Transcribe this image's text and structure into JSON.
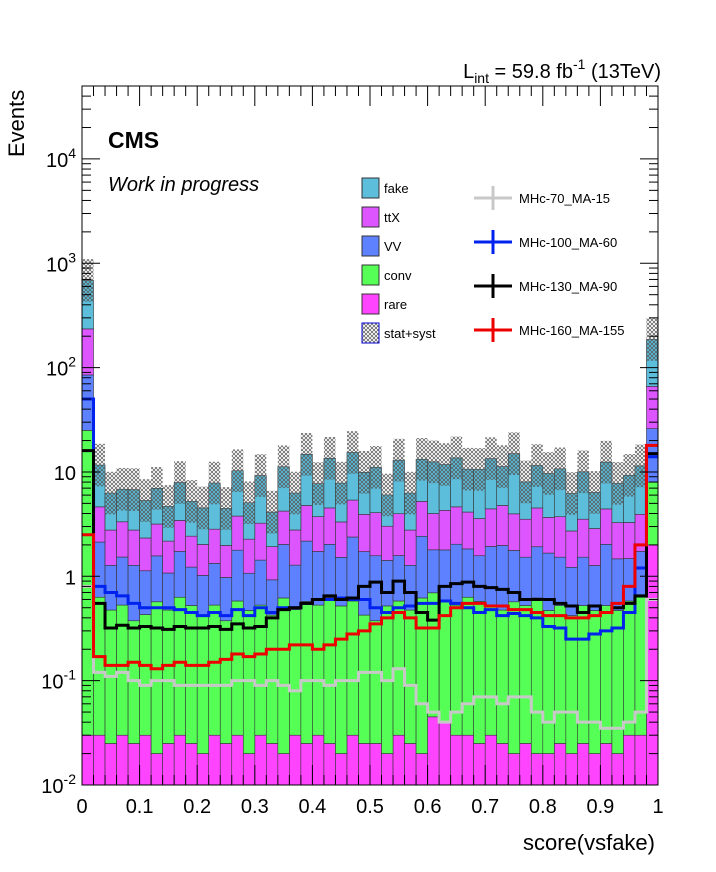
{
  "chart_data": {
    "type": "bar",
    "stacked": true,
    "title": "",
    "xlabel": "score(vsfake)",
    "ylabel": "Events",
    "xlim": [
      0,
      1
    ],
    "ylim": [
      0.01,
      50000
    ],
    "ylog": true,
    "lumi_label": "59.8 fb",
    "lumi_prefix": "L",
    "lumi_sub": "int",
    "lumi_sup": "-1",
    "lumi_energy": "(13TeV)",
    "experiment": "CMS",
    "status": "Work in progress",
    "x_ticks": [
      "0",
      "0.1",
      "0.2",
      "0.3",
      "0.4",
      "0.5",
      "0.6",
      "0.7",
      "0.8",
      "0.9",
      "1"
    ],
    "y_ticks": [
      {
        "base": "10",
        "exp": "-2"
      },
      {
        "base": "10",
        "exp": "-1"
      },
      {
        "base": "1",
        "exp": ""
      },
      {
        "base": "10",
        "exp": ""
      },
      {
        "base": "10",
        "exp": "2"
      },
      {
        "base": "10",
        "exp": "3"
      },
      {
        "base": "10",
        "exp": "4"
      }
    ],
    "nbins": 50,
    "stack_layers": [
      {
        "name": "rare",
        "color": "#ff44ff",
        "values": [
          0.03,
          0.03,
          0.025,
          0.03,
          0.025,
          0.03,
          0.02,
          0.025,
          0.03,
          0.025,
          0.02,
          0.03,
          0.025,
          0.03,
          0.02,
          0.03,
          0.025,
          0.02,
          0.03,
          0.025,
          0.03,
          0.025,
          0.02,
          0.03,
          0.025,
          0.025,
          0.02,
          0.03,
          0.025,
          0.02,
          0.045,
          0.04,
          0.03,
          0.03,
          0.025,
          0.03,
          0.025,
          0.02,
          0.025,
          0.02,
          0.02,
          0.025,
          0.02,
          0.025,
          0.02,
          0.025,
          0.02,
          0.03,
          0.03,
          2.0
        ]
      },
      {
        "name": "conv",
        "color": "#55ff55",
        "values": [
          25,
          0.6,
          0.45,
          0.5,
          0.35,
          0.4,
          0.55,
          0.45,
          0.6,
          0.5,
          0.4,
          0.5,
          0.35,
          0.55,
          0.45,
          0.5,
          0.4,
          0.6,
          0.45,
          0.55,
          0.5,
          0.6,
          0.5,
          0.55,
          0.4,
          0.35,
          0.5,
          0.55,
          0.45,
          0.6,
          0.65,
          0.55,
          0.5,
          0.6,
          0.55,
          0.5,
          0.45,
          0.55,
          0.5,
          0.6,
          0.45,
          0.5,
          0.4,
          0.5,
          0.45,
          0.5,
          0.45,
          0.55,
          0.6,
          6.0
        ]
      },
      {
        "name": "VV",
        "color": "#5e81ff",
        "values": [
          60,
          1.5,
          0.8,
          1.0,
          0.9,
          0.7,
          1.0,
          0.6,
          1.1,
          0.7,
          0.6,
          0.8,
          0.6,
          1.2,
          0.6,
          0.9,
          0.5,
          1.4,
          0.8,
          1.6,
          1.2,
          1.4,
          1.0,
          1.8,
          1.3,
          1.2,
          0.9,
          1.0,
          0.8,
          1.8,
          1.1,
          1.2,
          1.5,
          1.2,
          1.0,
          1.4,
          1.5,
          1.2,
          1.0,
          1.3,
          1.2,
          1.0,
          0.8,
          1.0,
          0.8,
          1.5,
          1.0,
          0.9,
          1.1,
          18
        ]
      },
      {
        "name": "ttX",
        "color": "#dd55ff",
        "values": [
          150,
          2.5,
          1.5,
          1.8,
          1.5,
          1.2,
          1.6,
          1.1,
          1.7,
          1.2,
          1.0,
          1.5,
          1.0,
          2.0,
          1.2,
          1.8,
          1.0,
          2.2,
          1.5,
          2.6,
          2.0,
          2.5,
          1.8,
          3.0,
          2.2,
          2.5,
          1.6,
          2.4,
          1.5,
          2.8,
          2.2,
          2.5,
          2.6,
          2.3,
          2.0,
          2.5,
          2.8,
          2.2,
          2.0,
          2.6,
          2.0,
          2.2,
          1.5,
          2.0,
          1.6,
          2.4,
          1.8,
          1.8,
          2.2,
          40
        ]
      },
      {
        "name": "fake",
        "color": "#5cbedb",
        "values": [
          450,
          7,
          3.5,
          3.5,
          4.0,
          3.0,
          3.8,
          2.5,
          4.5,
          2.8,
          2.5,
          5.0,
          2.5,
          6.5,
          2.8,
          6.0,
          2.2,
          7.0,
          3.5,
          10.0,
          4.0,
          9.0,
          4.5,
          10.0,
          6.0,
          7.0,
          3.0,
          9.0,
          3.5,
          8.0,
          8.5,
          7.5,
          9.0,
          6.5,
          7.0,
          9.0,
          6.5,
          11.0,
          4.5,
          7.0,
          6.0,
          7.0,
          3.5,
          6.5,
          3.5,
          8.0,
          4.5,
          6.0,
          7.5,
          120
        ]
      }
    ],
    "signals": [
      {
        "name": "MHc-70_MA-15",
        "color": "#c8c8c8",
        "values": [
          0.8,
          0.12,
          0.11,
          0.12,
          0.1,
          0.09,
          0.1,
          0.1,
          0.09,
          0.09,
          0.09,
          0.09,
          0.09,
          0.1,
          0.1,
          0.09,
          0.1,
          0.09,
          0.08,
          0.1,
          0.1,
          0.09,
          0.1,
          0.1,
          0.12,
          0.12,
          0.1,
          0.13,
          0.09,
          0.06,
          0.05,
          0.04,
          0.05,
          0.06,
          0.07,
          0.07,
          0.06,
          0.07,
          0.07,
          0.05,
          0.04,
          0.05,
          0.05,
          0.04,
          0.04,
          0.035,
          0.035,
          0.04,
          0.05,
          0.6
        ]
      },
      {
        "name": "MHc-100_MA-60",
        "color": "#0022ee",
        "values": [
          50,
          0.8,
          0.7,
          0.65,
          0.55,
          0.5,
          0.5,
          0.5,
          0.48,
          0.45,
          0.42,
          0.45,
          0.42,
          0.48,
          0.42,
          0.5,
          0.45,
          0.5,
          0.5,
          0.55,
          0.6,
          0.6,
          0.62,
          0.6,
          0.6,
          0.5,
          0.45,
          0.5,
          0.52,
          0.55,
          0.55,
          0.58,
          0.55,
          0.5,
          0.45,
          0.48,
          0.42,
          0.44,
          0.42,
          0.4,
          0.33,
          0.32,
          0.25,
          0.25,
          0.28,
          0.3,
          0.32,
          0.45,
          1.2,
          14
        ]
      },
      {
        "name": "MHc-130_MA-90",
        "color": "#000000",
        "values": [
          16,
          0.55,
          0.32,
          0.34,
          0.32,
          0.33,
          0.32,
          0.31,
          0.33,
          0.32,
          0.32,
          0.33,
          0.31,
          0.35,
          0.32,
          0.33,
          0.4,
          0.48,
          0.5,
          0.55,
          0.6,
          0.65,
          0.6,
          0.62,
          0.8,
          0.88,
          0.7,
          0.9,
          0.7,
          0.45,
          0.38,
          0.8,
          0.85,
          0.88,
          0.8,
          0.78,
          0.75,
          0.7,
          0.6,
          0.6,
          0.6,
          0.55,
          0.52,
          0.45,
          0.52,
          0.45,
          0.5,
          0.55,
          0.65,
          15
        ]
      },
      {
        "name": "MHc-160_MA-155",
        "color": "#ee0000",
        "values": [
          2.5,
          0.17,
          0.14,
          0.14,
          0.15,
          0.14,
          0.13,
          0.14,
          0.15,
          0.14,
          0.14,
          0.15,
          0.16,
          0.18,
          0.17,
          0.18,
          0.2,
          0.2,
          0.22,
          0.22,
          0.2,
          0.22,
          0.25,
          0.28,
          0.3,
          0.35,
          0.4,
          0.45,
          0.4,
          0.32,
          0.32,
          0.42,
          0.5,
          0.55,
          0.55,
          0.52,
          0.52,
          0.48,
          0.48,
          0.45,
          0.42,
          0.42,
          0.4,
          0.4,
          0.42,
          0.45,
          0.55,
          0.8,
          2.0,
          18
        ]
      }
    ],
    "legend": {
      "placement": "top-center",
      "stack_entries": [
        "fake",
        "ttX",
        "VV",
        "conv",
        "rare",
        "stat+syst"
      ],
      "signal_entries": [
        "MHc-70_MA-15",
        "MHc-100_MA-60",
        "MHc-130_MA-90",
        "MHc-160_MA-155"
      ]
    },
    "uncertainty_label": "stat+syst"
  }
}
